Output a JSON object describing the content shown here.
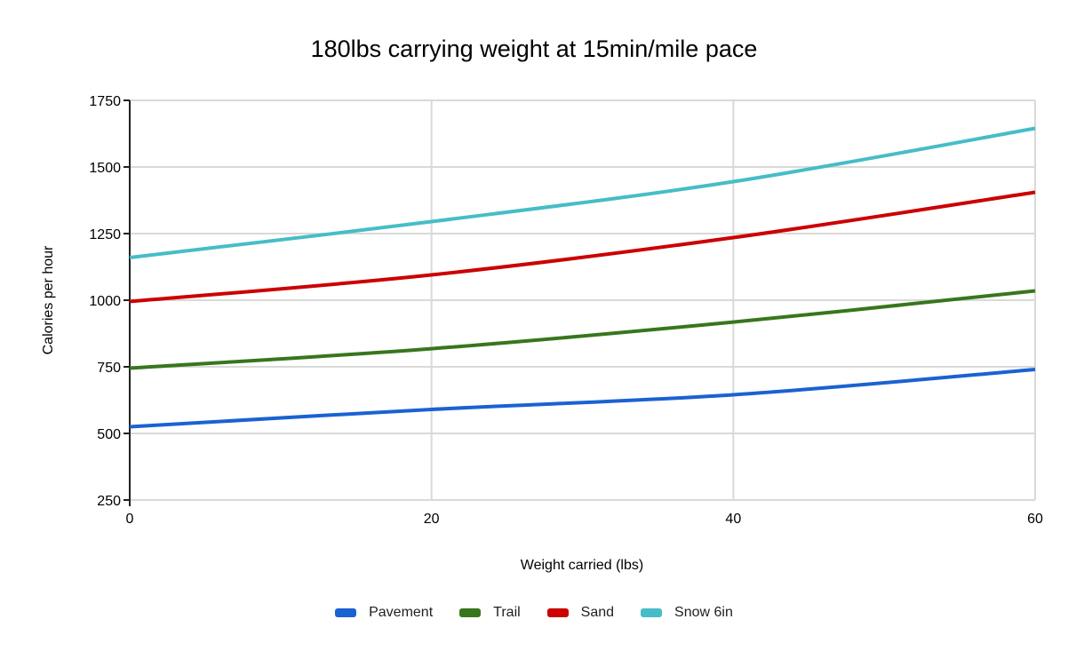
{
  "chart_data": {
    "type": "line",
    "title": "180lbs carrying weight at 15min/mile pace",
    "xlabel": "Weight carried (lbs)",
    "ylabel": "Calories per hour",
    "x": [
      0,
      20,
      40,
      60
    ],
    "xlim": [
      0,
      60
    ],
    "ylim": [
      250,
      1750
    ],
    "yticks": [
      250,
      500,
      750,
      1000,
      1250,
      1500,
      1750
    ],
    "grid": true,
    "legend_position": "bottom",
    "background_color": "#ffffff",
    "gridline_color": "#d9d9d9",
    "axis_line_color": "#212121",
    "tick_label_color": "#000000",
    "series": [
      {
        "name": "Pavement",
        "color": "#1a62d2",
        "values": [
          525,
          590,
          645,
          740
        ]
      },
      {
        "name": "Trail",
        "color": "#38761d",
        "values": [
          745,
          818,
          918,
          1035
        ]
      },
      {
        "name": "Sand",
        "color": "#cc0000",
        "values": [
          995,
          1095,
          1235,
          1405
        ]
      },
      {
        "name": "Snow 6in",
        "color": "#46bdc6",
        "values": [
          1160,
          1295,
          1445,
          1645
        ]
      }
    ]
  }
}
